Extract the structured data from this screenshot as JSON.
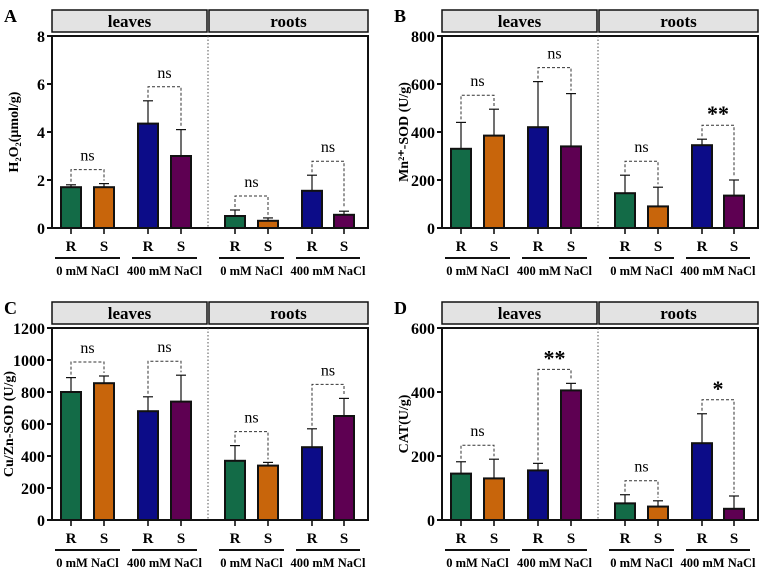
{
  "chart_data": [
    {
      "type": "bar",
      "panel_label": "A",
      "ylabel": "H₂O₂(μmol/g)",
      "ylim": [
        0,
        8
      ],
      "yticks": [
        0,
        2,
        4,
        6,
        8
      ],
      "facets": [
        "leaves",
        "roots"
      ],
      "groups": [
        "0 mM NaCl",
        "400 mM NaCl",
        "0 mM NaCl",
        "400 mM NaCl"
      ],
      "genotypes": [
        "R",
        "S"
      ],
      "values": [
        1.7,
        1.7,
        4.35,
        3.0,
        0.5,
        0.3,
        1.55,
        0.55
      ],
      "errors": [
        0.1,
        0.15,
        0.95,
        1.1,
        0.25,
        0.12,
        0.65,
        0.15
      ],
      "significance": [
        "ns",
        "ns",
        "ns",
        "ns"
      ]
    },
    {
      "type": "bar",
      "panel_label": "B",
      "ylabel": "Mn²⁺-SOD (U/g)",
      "ylim": [
        0,
        800
      ],
      "yticks": [
        0,
        200,
        400,
        600,
        800
      ],
      "facets": [
        "leaves",
        "roots"
      ],
      "groups": [
        "0 mM NaCl",
        "400 mM NaCl",
        "0 mM NaCl",
        "400 mM NaCl"
      ],
      "genotypes": [
        "R",
        "S"
      ],
      "values": [
        330,
        385,
        420,
        340,
        145,
        90,
        345,
        135
      ],
      "errors": [
        110,
        110,
        190,
        220,
        75,
        80,
        25,
        65
      ],
      "significance": [
        "ns",
        "ns",
        "ns",
        "**"
      ]
    },
    {
      "type": "bar",
      "panel_label": "C",
      "ylabel": "Cu/Zn-SOD (U/g)",
      "ylim": [
        0,
        1200
      ],
      "yticks": [
        0,
        200,
        400,
        600,
        800,
        1000,
        1200
      ],
      "facets": [
        "leaves",
        "roots"
      ],
      "groups": [
        "0 mM NaCl",
        "400 mM NaCl",
        "0 mM NaCl",
        "400 mM NaCl"
      ],
      "genotypes": [
        "R",
        "S"
      ],
      "values": [
        800,
        855,
        680,
        740,
        370,
        340,
        455,
        650
      ],
      "errors": [
        90,
        45,
        90,
        165,
        95,
        20,
        115,
        110
      ],
      "significance": [
        "ns",
        "ns",
        "ns",
        "ns"
      ]
    },
    {
      "type": "bar",
      "panel_label": "D",
      "ylabel": "CAT(U/g)",
      "ylim": [
        0,
        600
      ],
      "yticks": [
        0,
        200,
        400,
        600
      ],
      "facets": [
        "leaves",
        "roots"
      ],
      "groups": [
        "0 mM NaCl",
        "400 mM NaCl",
        "0 mM NaCl",
        "400 mM NaCl"
      ],
      "genotypes": [
        "R",
        "S"
      ],
      "values": [
        145,
        130,
        155,
        405,
        52,
        42,
        240,
        35
      ],
      "errors": [
        37,
        60,
        22,
        22,
        27,
        18,
        92,
        40
      ],
      "significance": [
        "ns",
        "**",
        "ns",
        "*"
      ]
    }
  ],
  "colors": {
    "bars": [
      "#136b47",
      "#c8650b",
      "#0c0c88",
      "#5e0052",
      "#136b47",
      "#c8650b",
      "#0c0c88",
      "#5e0052"
    ],
    "facet_bg": "#e3e3e3"
  }
}
